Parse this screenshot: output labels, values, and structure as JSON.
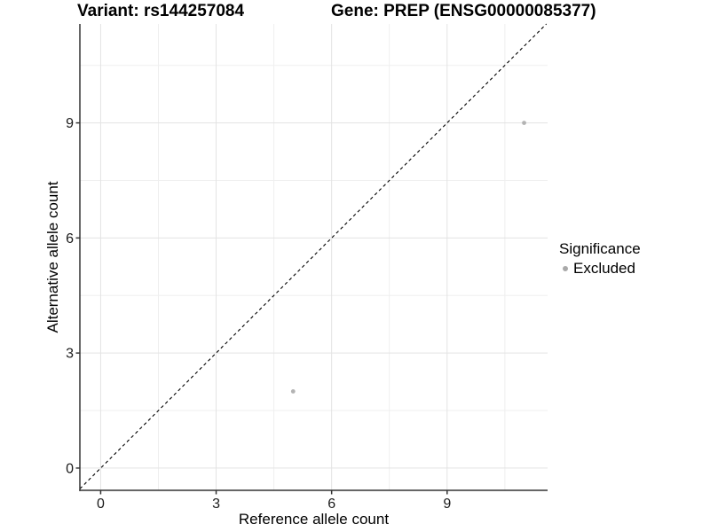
{
  "figure": {
    "title_left": "Variant: rs144257084",
    "title_right": "Gene: PREP (ENSG00000085377)"
  },
  "chart_data": {
    "type": "scatter",
    "title_left": "Variant: rs144257084",
    "title_right": "Gene: PREP (ENSG00000085377)",
    "xlabel": "Reference allele count",
    "ylabel": "Alternative allele count",
    "x_ticks": [
      0,
      3,
      6,
      9
    ],
    "y_ticks": [
      0,
      3,
      6,
      9
    ],
    "x_minor_gridlines": [
      1.5,
      4.5,
      7.5,
      10.5
    ],
    "y_minor_gridlines": [
      1.5,
      4.5,
      7.5,
      10.5
    ],
    "xlim": [
      -0.54,
      11.61
    ],
    "ylim": [
      -0.58,
      11.58
    ],
    "grid": "on",
    "identity_line": {
      "slope": 1,
      "intercept": 0,
      "style": "dashed",
      "color": "#000000"
    },
    "series": [
      {
        "name": "Excluded",
        "color": "#b3b3b3",
        "points": [
          {
            "x": 5,
            "y": 2
          },
          {
            "x": 11,
            "y": 9
          }
        ]
      }
    ],
    "legend": {
      "title": "Significance",
      "position": "right",
      "items": [
        {
          "label": "Excluded",
          "color": "#a9a9a9"
        }
      ]
    },
    "colors": {
      "axis_line": "#333333",
      "tick_text": "#1a1a1a",
      "grid_major": "#e3e3e3",
      "grid_minor": "#efefef",
      "background": "#ffffff"
    }
  }
}
